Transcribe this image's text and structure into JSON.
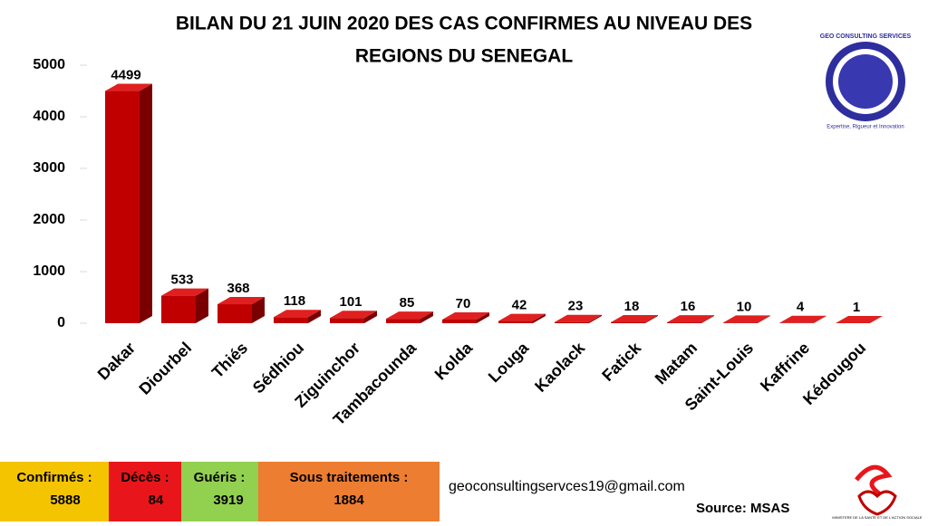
{
  "chart_data": {
    "type": "bar3d",
    "title": [
      "BILAN DU 21 JUIN 2020 DES CAS CONFIRMES AU NIVEAU DES",
      "REGIONS  DU SENEGAL"
    ],
    "categories": [
      "Dakar",
      "Diourbel",
      "Thiés",
      "Sédhiou",
      "Ziguinchor",
      "Tambacounda",
      "Kolda",
      "Louga",
      "Kaolack",
      "Fatick",
      "Matam",
      "Saint-Louis",
      "Kaffrine",
      "Kédougou"
    ],
    "values": [
      4499,
      533,
      368,
      118,
      101,
      85,
      70,
      42,
      23,
      18,
      16,
      10,
      4,
      1
    ],
    "color": "#c00000",
    "ylim": [
      0,
      5000
    ],
    "yticks": [
      0,
      1000,
      2000,
      3000,
      4000,
      5000
    ],
    "grid": false
  },
  "logo": {
    "name": "GEO CONSULTING SERVICES",
    "motto": "Expertise, Rigueur et Innovation"
  },
  "summary": [
    {
      "label": "Confirmés :",
      "value": 5888
    },
    {
      "label": "Décès :",
      "value": 84
    },
    {
      "label": "Guéris :",
      "value": 3919
    },
    {
      "label": "Sous traitements :",
      "value": 1884
    }
  ],
  "email": "geoconsultingservces19@gmail.com",
  "source": "Source:  MSAS",
  "ministry": "MINISTERE DE LA SANTE ET DE L'ACTION SOCIALE"
}
